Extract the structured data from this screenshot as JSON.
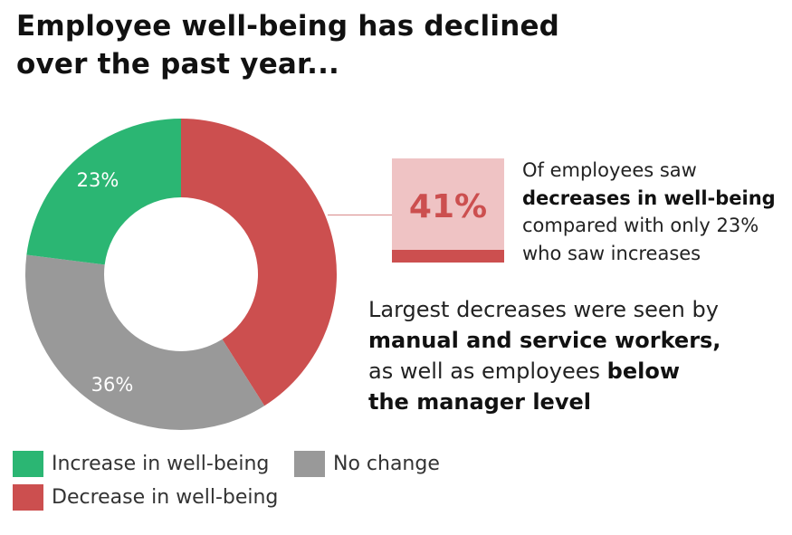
{
  "title_line1": "Employee well-being has declined",
  "title_line2": "over the past year...",
  "chart_data": {
    "type": "pie",
    "variant": "donut",
    "title": "Employee well-being has declined over the past year...",
    "series": [
      {
        "name": "Decrease in well-being",
        "value": 41,
        "label": "",
        "color": "#cc4f4f"
      },
      {
        "name": "No change",
        "value": 36,
        "label": "36%",
        "color": "#999999"
      },
      {
        "name": "Increase in well-being",
        "value": 23,
        "label": "23%",
        "color": "#2bb673"
      }
    ],
    "legend": [
      "Increase in well-being",
      "No change",
      "Decrease in well-being"
    ],
    "legend_placement": "bottom"
  },
  "callout": {
    "value": "41%",
    "line1": "Of employees saw",
    "line2_bold": "decreases in well-being",
    "line3": "compared with only 23%",
    "line4": "who saw increases"
  },
  "note": {
    "line1": "Largest decreases were seen by",
    "line2_bold": "manual and service workers,",
    "line3_regular": "as well as employees ",
    "line3_bold": "below",
    "line4_bold": "the manager level"
  }
}
